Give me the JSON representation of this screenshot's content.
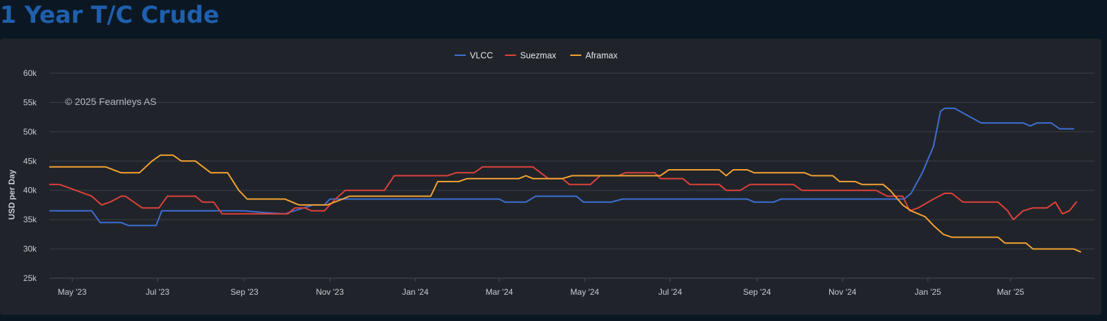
{
  "page": {
    "title": "1 Year T/C Crude"
  },
  "credits": {
    "text": "© 2025 Fearnleys AS"
  },
  "colors": {
    "VLCC": "#3e6fd4",
    "Suezmax": "#e0413a",
    "Aframax": "#f5a232"
  },
  "chart_data": {
    "type": "line",
    "title": "1 Year T/C Crude",
    "ylabel": "USD per Day",
    "xlabel": "",
    "x_range": [
      "2023-04-15",
      "2025-04-30"
    ],
    "ylim": [
      25000,
      60000
    ],
    "y_ticks": [
      {
        "value": 25000,
        "label": "25k"
      },
      {
        "value": 30000,
        "label": "30k"
      },
      {
        "value": 35000,
        "label": "35k"
      },
      {
        "value": 40000,
        "label": "40k"
      },
      {
        "value": 45000,
        "label": "45k"
      },
      {
        "value": 50000,
        "label": "50k"
      },
      {
        "value": 55000,
        "label": "55k"
      },
      {
        "value": 60000,
        "label": "60k"
      }
    ],
    "x_ticks": [
      {
        "date": "2023-05-01",
        "label": "May '23"
      },
      {
        "date": "2023-07-01",
        "label": "Jul '23"
      },
      {
        "date": "2023-09-01",
        "label": "Sep '23"
      },
      {
        "date": "2023-11-01",
        "label": "Nov '23"
      },
      {
        "date": "2024-01-01",
        "label": "Jan '24"
      },
      {
        "date": "2024-03-01",
        "label": "Mar '24"
      },
      {
        "date": "2024-05-01",
        "label": "May '24"
      },
      {
        "date": "2024-07-01",
        "label": "Jul '24"
      },
      {
        "date": "2024-09-01",
        "label": "Sep '24"
      },
      {
        "date": "2024-11-01",
        "label": "Nov '24"
      },
      {
        "date": "2025-01-01",
        "label": "Jan '25"
      },
      {
        "date": "2025-03-01",
        "label": "Mar '25"
      }
    ],
    "grid": true,
    "legend": "top-center",
    "series": [
      {
        "name": "VLCC",
        "points": [
          [
            "2023-04-15",
            36500
          ],
          [
            "2023-05-15",
            36500
          ],
          [
            "2023-05-21",
            34500
          ],
          [
            "2023-06-05",
            34500
          ],
          [
            "2023-06-10",
            34000
          ],
          [
            "2023-06-30",
            34000
          ],
          [
            "2023-07-04",
            36500
          ],
          [
            "2023-09-01",
            36500
          ],
          [
            "2023-09-15",
            36200
          ],
          [
            "2023-09-30",
            36000
          ],
          [
            "2023-10-20",
            37500
          ],
          [
            "2023-10-28",
            37500
          ],
          [
            "2023-11-01",
            38500
          ],
          [
            "2024-03-01",
            38500
          ],
          [
            "2024-03-05",
            38000
          ],
          [
            "2024-03-20",
            38000
          ],
          [
            "2024-03-27",
            39000
          ],
          [
            "2024-04-25",
            39000
          ],
          [
            "2024-04-30",
            38000
          ],
          [
            "2024-05-20",
            38000
          ],
          [
            "2024-05-28",
            38500
          ],
          [
            "2024-08-25",
            38500
          ],
          [
            "2024-08-30",
            38000
          ],
          [
            "2024-09-13",
            38000
          ],
          [
            "2024-09-18",
            38500
          ],
          [
            "2024-12-15",
            38500
          ],
          [
            "2024-12-20",
            39500
          ],
          [
            "2024-12-28",
            43000
          ],
          [
            "2025-01-05",
            47500
          ],
          [
            "2025-01-10",
            53500
          ],
          [
            "2025-01-13",
            54000
          ],
          [
            "2025-01-20",
            54000
          ],
          [
            "2025-02-08",
            51500
          ],
          [
            "2025-03-10",
            51500
          ],
          [
            "2025-03-15",
            51000
          ],
          [
            "2025-03-20",
            51500
          ],
          [
            "2025-03-30",
            51500
          ],
          [
            "2025-04-05",
            50500
          ],
          [
            "2025-04-15",
            50500
          ]
        ]
      },
      {
        "name": "Suezmax",
        "points": [
          [
            "2023-04-15",
            41000
          ],
          [
            "2023-04-22",
            41000
          ],
          [
            "2023-05-15",
            39000
          ],
          [
            "2023-05-22",
            37500
          ],
          [
            "2023-05-28",
            38000
          ],
          [
            "2023-06-05",
            39000
          ],
          [
            "2023-06-08",
            39000
          ],
          [
            "2023-06-20",
            37000
          ],
          [
            "2023-07-02",
            37000
          ],
          [
            "2023-07-08",
            39000
          ],
          [
            "2023-07-28",
            39000
          ],
          [
            "2023-08-02",
            38000
          ],
          [
            "2023-08-10",
            38000
          ],
          [
            "2023-08-16",
            36000
          ],
          [
            "2023-10-02",
            36000
          ],
          [
            "2023-10-07",
            37000
          ],
          [
            "2023-10-14",
            37000
          ],
          [
            "2023-10-19",
            36500
          ],
          [
            "2023-10-28",
            36500
          ],
          [
            "2023-11-05",
            38500
          ],
          [
            "2023-11-12",
            40000
          ],
          [
            "2023-12-10",
            40000
          ],
          [
            "2023-12-17",
            42500
          ],
          [
            "2024-01-24",
            42500
          ],
          [
            "2024-01-30",
            43000
          ],
          [
            "2024-02-12",
            43000
          ],
          [
            "2024-02-18",
            44000
          ],
          [
            "2024-03-25",
            44000
          ],
          [
            "2024-04-05",
            42000
          ],
          [
            "2024-04-15",
            42000
          ],
          [
            "2024-04-20",
            41000
          ],
          [
            "2024-05-05",
            41000
          ],
          [
            "2024-05-12",
            42500
          ],
          [
            "2024-05-25",
            42500
          ],
          [
            "2024-05-30",
            43000
          ],
          [
            "2024-06-20",
            43000
          ],
          [
            "2024-06-24",
            42000
          ],
          [
            "2024-07-10",
            42000
          ],
          [
            "2024-07-15",
            41000
          ],
          [
            "2024-08-05",
            41000
          ],
          [
            "2024-08-10",
            40000
          ],
          [
            "2024-08-20",
            40000
          ],
          [
            "2024-08-27",
            41000
          ],
          [
            "2024-09-27",
            41000
          ],
          [
            "2024-10-03",
            40000
          ],
          [
            "2024-11-25",
            40000
          ],
          [
            "2024-12-03",
            39000
          ],
          [
            "2024-12-14",
            39000
          ],
          [
            "2024-12-19",
            36500
          ],
          [
            "2024-12-25",
            37000
          ],
          [
            "2025-01-05",
            38500
          ],
          [
            "2025-01-13",
            39500
          ],
          [
            "2025-01-18",
            39500
          ],
          [
            "2025-01-26",
            38000
          ],
          [
            "2025-02-20",
            38000
          ],
          [
            "2025-02-27",
            36500
          ],
          [
            "2025-03-03",
            35000
          ],
          [
            "2025-03-10",
            36500
          ],
          [
            "2025-03-17",
            37000
          ],
          [
            "2025-03-27",
            37000
          ],
          [
            "2025-04-02",
            38000
          ],
          [
            "2025-04-07",
            36000
          ],
          [
            "2025-04-12",
            36500
          ],
          [
            "2025-04-17",
            38000
          ]
        ]
      },
      {
        "name": "Aframax",
        "points": [
          [
            "2023-04-15",
            44000
          ],
          [
            "2023-05-25",
            44000
          ],
          [
            "2023-06-05",
            43000
          ],
          [
            "2023-06-18",
            43000
          ],
          [
            "2023-06-27",
            45000
          ],
          [
            "2023-07-03",
            46000
          ],
          [
            "2023-07-12",
            46000
          ],
          [
            "2023-07-18",
            45000
          ],
          [
            "2023-07-28",
            45000
          ],
          [
            "2023-08-08",
            43000
          ],
          [
            "2023-08-20",
            43000
          ],
          [
            "2023-08-28",
            40000
          ],
          [
            "2023-09-03",
            38500
          ],
          [
            "2023-09-30",
            38500
          ],
          [
            "2023-10-10",
            37500
          ],
          [
            "2023-10-30",
            37500
          ],
          [
            "2023-11-10",
            38500
          ],
          [
            "2023-11-15",
            39000
          ],
          [
            "2024-01-12",
            39000
          ],
          [
            "2024-01-17",
            41500
          ],
          [
            "2024-02-01",
            41500
          ],
          [
            "2024-02-07",
            42000
          ],
          [
            "2024-03-15",
            42000
          ],
          [
            "2024-03-20",
            42500
          ],
          [
            "2024-03-25",
            42000
          ],
          [
            "2024-04-15",
            42000
          ],
          [
            "2024-04-22",
            42500
          ],
          [
            "2024-06-24",
            42500
          ],
          [
            "2024-06-30",
            43500
          ],
          [
            "2024-08-05",
            43500
          ],
          [
            "2024-08-10",
            42500
          ],
          [
            "2024-08-15",
            43500
          ],
          [
            "2024-08-25",
            43500
          ],
          [
            "2024-08-30",
            43000
          ],
          [
            "2024-10-05",
            43000
          ],
          [
            "2024-10-10",
            42500
          ],
          [
            "2024-10-25",
            42500
          ],
          [
            "2024-10-30",
            41500
          ],
          [
            "2024-11-10",
            41500
          ],
          [
            "2024-11-15",
            41000
          ],
          [
            "2024-11-30",
            41000
          ],
          [
            "2024-12-05",
            40000
          ],
          [
            "2024-12-14",
            37500
          ],
          [
            "2024-12-20",
            36500
          ],
          [
            "2024-12-30",
            35500
          ],
          [
            "2025-01-05",
            34000
          ],
          [
            "2025-01-12",
            32500
          ],
          [
            "2025-01-18",
            32000
          ],
          [
            "2025-02-20",
            32000
          ],
          [
            "2025-02-25",
            31000
          ],
          [
            "2025-03-12",
            31000
          ],
          [
            "2025-03-17",
            30000
          ],
          [
            "2025-04-15",
            30000
          ],
          [
            "2025-04-20",
            29500
          ]
        ]
      }
    ]
  }
}
